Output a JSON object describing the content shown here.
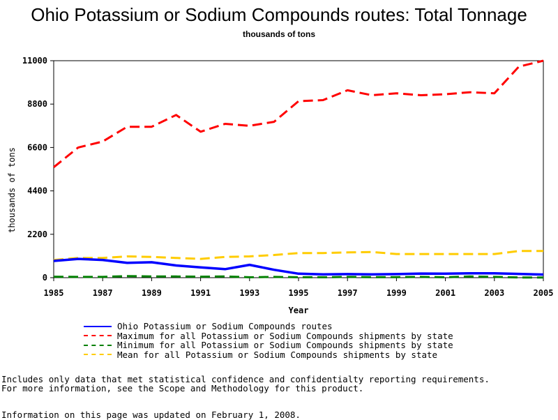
{
  "page": {
    "title": "Ohio Potassium or Sodium Compounds routes: Total Tonnage",
    "subtitle": "thousands of tons"
  },
  "notes": {
    "line1": "Includes only data that met statistical confidence and confidentialty reporting requirements.",
    "line2": "For more information, see the Scope and Methodology for this product.",
    "updated": "Information on this page was updated on February 1, 2008."
  },
  "chart_data": {
    "type": "line",
    "title": "Ohio Potassium or Sodium Compounds routes: Total Tonnage",
    "subtitle": "thousands of tons",
    "xlabel": "Year",
    "ylabel": "thousands of tons",
    "xlim": [
      1985,
      2005
    ],
    "ylim": [
      0,
      11000
    ],
    "x_ticks": [
      "1985",
      "1987",
      "1989",
      "1991",
      "1993",
      "1995",
      "1997",
      "1999",
      "2001",
      "2003",
      "2005"
    ],
    "y_ticks": [
      "0",
      "2200",
      "4400",
      "6600",
      "8800",
      "11000"
    ],
    "grid": false,
    "legend_position": "bottom",
    "x": [
      1985,
      1986,
      1987,
      1988,
      1989,
      1990,
      1991,
      1992,
      1993,
      1994,
      1995,
      1996,
      1997,
      1998,
      1999,
      2000,
      2001,
      2002,
      2003,
      2004,
      2005
    ],
    "series": [
      {
        "name": "Ohio Potassium or Sodium Compounds routes",
        "color": "#0000ff",
        "dash": "solid",
        "values": [
          850,
          950,
          900,
          750,
          780,
          620,
          520,
          430,
          650,
          400,
          200,
          170,
          180,
          170,
          180,
          210,
          200,
          220,
          220,
          190,
          160
        ]
      },
      {
        "name": "Maximum for all Potassium or Sodium Compounds shipments by state",
        "color": "#ff0000",
        "dash": "dashed",
        "values": [
          5600,
          6600,
          6900,
          7650,
          7650,
          8250,
          7400,
          7800,
          7700,
          7900,
          8950,
          9000,
          9500,
          9250,
          9350,
          9250,
          9300,
          9400,
          9350,
          10700,
          11000
        ]
      },
      {
        "name": "Minimum for all Potassium or Sodium Compounds shipments by state",
        "color": "#008000",
        "dash": "dashed",
        "values": [
          50,
          40,
          40,
          80,
          60,
          60,
          50,
          60,
          20,
          40,
          20,
          20,
          40,
          30,
          30,
          40,
          20,
          60,
          40,
          10,
          10
        ]
      },
      {
        "name": "Mean for all Potassium or Sodium Compounds shipments by state",
        "color": "#ffcc00",
        "dash": "dashed",
        "values": [
          900,
          1000,
          1000,
          1080,
          1050,
          1000,
          950,
          1050,
          1080,
          1150,
          1250,
          1250,
          1280,
          1300,
          1200,
          1200,
          1200,
          1200,
          1200,
          1350,
          1350
        ]
      }
    ]
  }
}
